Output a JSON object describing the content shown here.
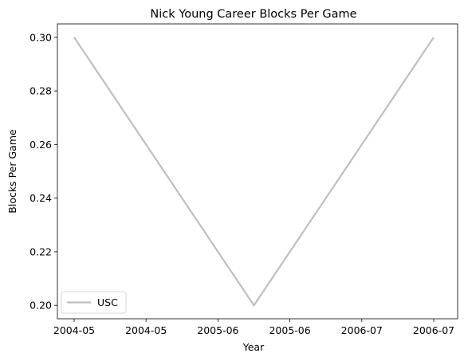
{
  "chart_data": {
    "type": "line",
    "title": "Nick Young  Career Blocks Per Game",
    "xlabel": "Year",
    "ylabel": "Blocks Per Game",
    "x_tick_labels": [
      "2004-05",
      "2004-05",
      "2005-06",
      "2005-06",
      "2006-07",
      "2006-07"
    ],
    "y_ticks": [
      0.2,
      0.22,
      0.24,
      0.26,
      0.28,
      0.3
    ],
    "y_tick_labels": [
      "0.20",
      "0.22",
      "0.24",
      "0.26",
      "0.28",
      "0.30"
    ],
    "ylim": [
      0.195,
      0.305
    ],
    "x": [
      "2004-05",
      "2005-06",
      "2006-07"
    ],
    "series": [
      {
        "name": "USC",
        "values": [
          0.3,
          0.2,
          0.3
        ],
        "color": "#bfbfbf"
      }
    ],
    "legend_position": "lower-left",
    "grid": false
  }
}
